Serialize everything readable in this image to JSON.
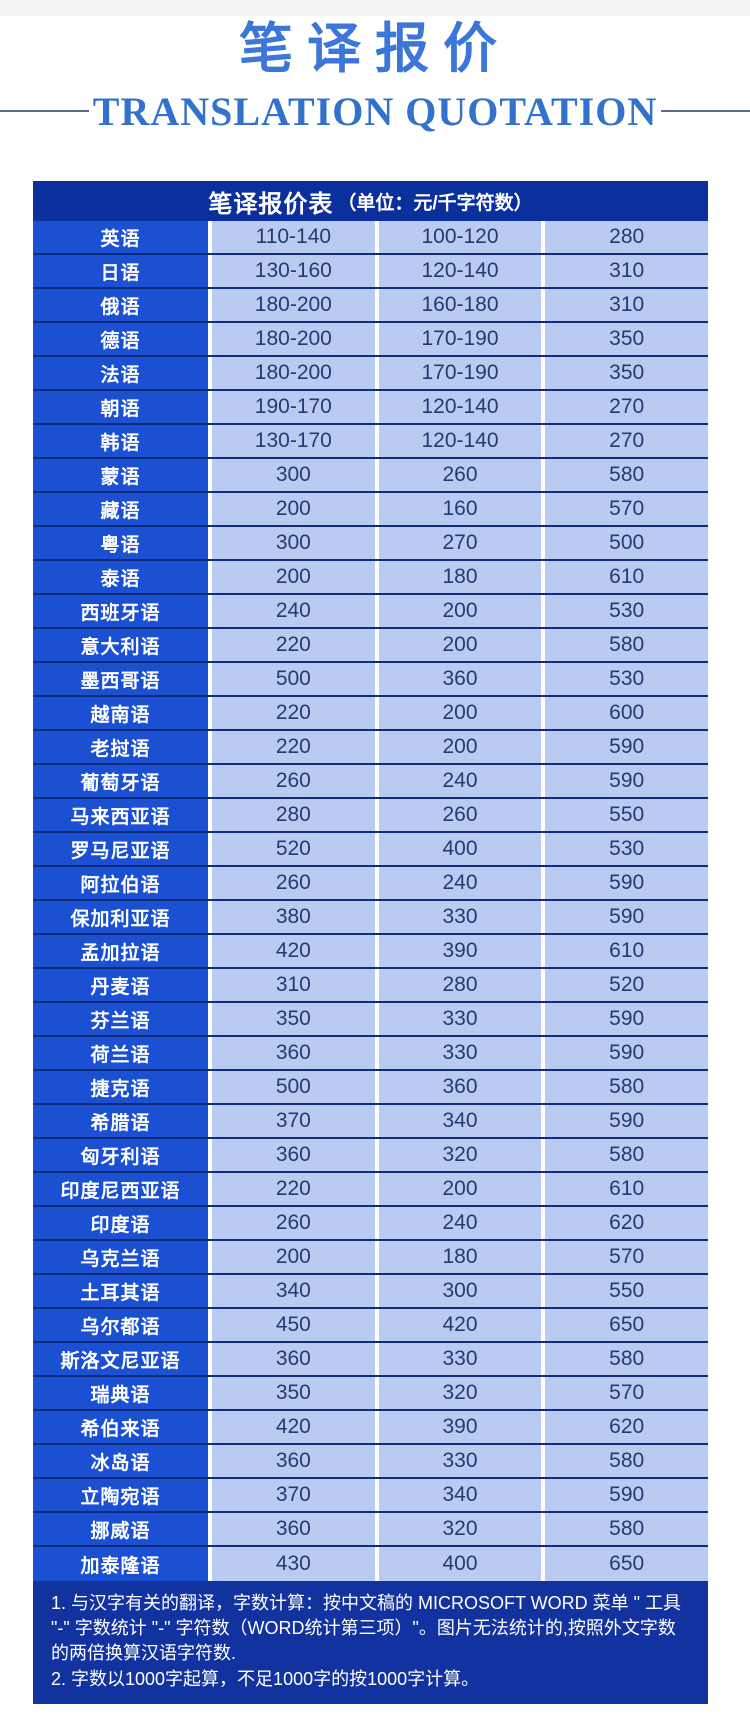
{
  "page": {
    "title": "笔译报价",
    "subtitle": "TRANSLATION QUOTATION"
  },
  "table": {
    "header_title": "笔译报价表",
    "header_unit": "（单位：元/千字符数）",
    "rows": [
      {
        "lang": "英语",
        "c1": "110-140",
        "c2": "100-120",
        "c3": "280"
      },
      {
        "lang": "日语",
        "c1": "130-160",
        "c2": "120-140",
        "c3": "310"
      },
      {
        "lang": "俄语",
        "c1": "180-200",
        "c2": "160-180",
        "c3": "310"
      },
      {
        "lang": "德语",
        "c1": "180-200",
        "c2": "170-190",
        "c3": "350"
      },
      {
        "lang": "法语",
        "c1": "180-200",
        "c2": "170-190",
        "c3": "350"
      },
      {
        "lang": "朝语",
        "c1": "190-170",
        "c2": "120-140",
        "c3": "270"
      },
      {
        "lang": "韩语",
        "c1": "130-170",
        "c2": "120-140",
        "c3": "270"
      },
      {
        "lang": "蒙语",
        "c1": "300",
        "c2": "260",
        "c3": "580"
      },
      {
        "lang": "藏语",
        "c1": "200",
        "c2": "160",
        "c3": "570"
      },
      {
        "lang": "粤语",
        "c1": "300",
        "c2": "270",
        "c3": "500"
      },
      {
        "lang": "泰语",
        "c1": "200",
        "c2": "180",
        "c3": "610"
      },
      {
        "lang": "西班牙语",
        "c1": "240",
        "c2": "200",
        "c3": "530"
      },
      {
        "lang": "意大利语",
        "c1": "220",
        "c2": "200",
        "c3": "580"
      },
      {
        "lang": "墨西哥语",
        "c1": "500",
        "c2": "360",
        "c3": "530"
      },
      {
        "lang": "越南语",
        "c1": "220",
        "c2": "200",
        "c3": "600"
      },
      {
        "lang": "老挝语",
        "c1": "220",
        "c2": "200",
        "c3": "590"
      },
      {
        "lang": "葡萄牙语",
        "c1": "260",
        "c2": "240",
        "c3": "590"
      },
      {
        "lang": "马来西亚语",
        "c1": "280",
        "c2": "260",
        "c3": "550"
      },
      {
        "lang": "罗马尼亚语",
        "c1": "520",
        "c2": "400",
        "c3": "530"
      },
      {
        "lang": "阿拉伯语",
        "c1": "260",
        "c2": "240",
        "c3": "590"
      },
      {
        "lang": "保加利亚语",
        "c1": "380",
        "c2": "330",
        "c3": "590"
      },
      {
        "lang": "孟加拉语",
        "c1": "420",
        "c2": "390",
        "c3": "610"
      },
      {
        "lang": "丹麦语",
        "c1": "310",
        "c2": "280",
        "c3": "520"
      },
      {
        "lang": "芬兰语",
        "c1": "350",
        "c2": "330",
        "c3": "590"
      },
      {
        "lang": "荷兰语",
        "c1": "360",
        "c2": "330",
        "c3": "590"
      },
      {
        "lang": "捷克语",
        "c1": "500",
        "c2": "360",
        "c3": "580"
      },
      {
        "lang": "希腊语",
        "c1": "370",
        "c2": "340",
        "c3": "590"
      },
      {
        "lang": "匈牙利语",
        "c1": "360",
        "c2": "320",
        "c3": "580"
      },
      {
        "lang": "印度尼西亚语",
        "c1": "220",
        "c2": "200",
        "c3": "610"
      },
      {
        "lang": "印度语",
        "c1": "260",
        "c2": "240",
        "c3": "620"
      },
      {
        "lang": "乌克兰语",
        "c1": "200",
        "c2": "180",
        "c3": "570"
      },
      {
        "lang": "土耳其语",
        "c1": "340",
        "c2": "300",
        "c3": "550"
      },
      {
        "lang": "乌尔都语",
        "c1": "450",
        "c2": "420",
        "c3": "650"
      },
      {
        "lang": "斯洛文尼亚语",
        "c1": "360",
        "c2": "330",
        "c3": "580"
      },
      {
        "lang": "瑞典语",
        "c1": "350",
        "c2": "320",
        "c3": "570"
      },
      {
        "lang": "希伯来语",
        "c1": "420",
        "c2": "390",
        "c3": "620"
      },
      {
        "lang": "冰岛语",
        "c1": "360",
        "c2": "330",
        "c3": "580"
      },
      {
        "lang": "立陶宛语",
        "c1": "370",
        "c2": "340",
        "c3": "590"
      },
      {
        "lang": "挪威语",
        "c1": "360",
        "c2": "320",
        "c3": "580"
      },
      {
        "lang": "加泰隆语",
        "c1": "430",
        "c2": "400",
        "c3": "650"
      }
    ]
  },
  "notes": [
    "1. 与汉字有关的翻译，字数计算：按中文稿的 MICROSOFT WORD 菜单 \" 工具 \"-\" 字数统计 \"-\" 字符数（WORD统计第三项）\"。图片无法统计的,按照外文字数的两倍换算汉语字符数.",
    "2. 字数以1000字起算，不足1000字的按1000字计算。"
  ],
  "colors": {
    "title_blue": "#3b76d8",
    "subtitle_blue": "#3372cc",
    "header_bg": "#0c2f9e",
    "language_column_bg": "#1c50d2",
    "price_cell_bg": "#b9cbf1",
    "row_divider": "#102c7a",
    "notes_bg": "#12339f",
    "price_text": "#263a72"
  }
}
